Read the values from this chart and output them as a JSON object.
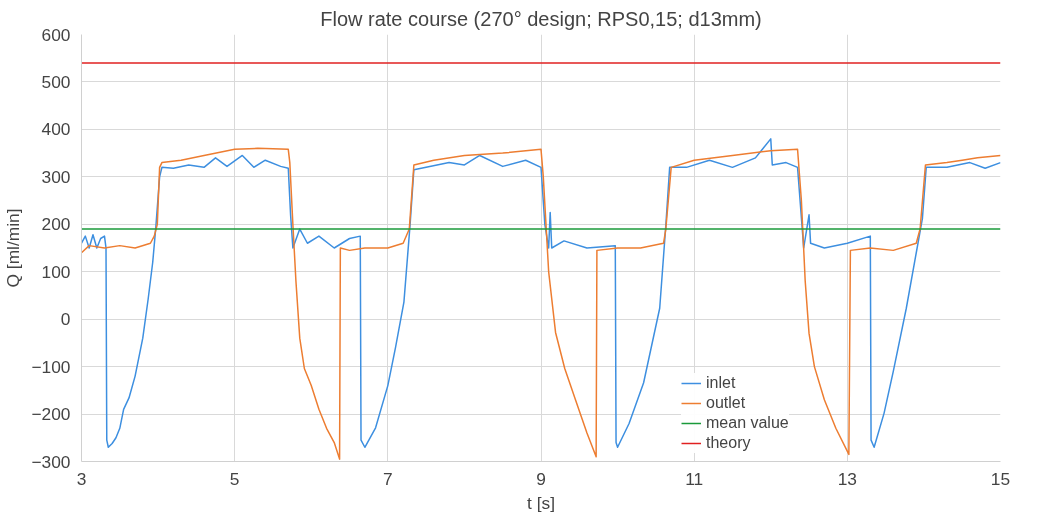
{
  "chart_data": {
    "type": "line",
    "title": "Flow rate course (270° design; RPS0,15; d13mm)",
    "xlabel": "t [s]",
    "ylabel": "Q [ml/min]",
    "xlim": [
      3,
      15
    ],
    "xticks": [
      3,
      5,
      7,
      9,
      11,
      13,
      15
    ],
    "ylim": [
      -300,
      600
    ],
    "yticks": [
      -300,
      -200,
      -100,
      0,
      100,
      200,
      300,
      400,
      500,
      600
    ],
    "grid": true,
    "legend": "bottom right",
    "line_style": "solid",
    "marker": "none",
    "series": [
      {
        "name": "inlet",
        "color": "#3d8fe0",
        "x": [
          3.0,
          3.05,
          3.1,
          3.15,
          3.2,
          3.25,
          3.3,
          3.32,
          3.33,
          3.35,
          3.4,
          3.45,
          3.5,
          3.55,
          3.62,
          3.7,
          3.8,
          3.87,
          3.93,
          3.97,
          4.02,
          4.05,
          4.2,
          4.4,
          4.6,
          4.75,
          4.9,
          5.1,
          5.25,
          5.4,
          5.6,
          5.7,
          5.73,
          5.76,
          5.85,
          5.95,
          6.1,
          6.3,
          6.5,
          6.64,
          6.65,
          6.7,
          6.84,
          7.0,
          7.1,
          7.21,
          7.29,
          7.34,
          7.5,
          7.8,
          8.0,
          8.2,
          8.5,
          8.8,
          9.0,
          9.05,
          9.1,
          9.12,
          9.14,
          9.3,
          9.6,
          9.97,
          9.98,
          10.0,
          10.15,
          10.34,
          10.55,
          10.63,
          10.68,
          10.9,
          11.2,
          11.5,
          11.8,
          12.0,
          12.02,
          12.2,
          12.35,
          12.43,
          12.5,
          12.52,
          12.7,
          13.0,
          13.3,
          13.31,
          13.35,
          13.48,
          13.6,
          13.77,
          13.9,
          13.98,
          14.03,
          14.3,
          14.6,
          14.8,
          15.0
        ],
        "values": [
          160,
          175,
          150,
          178,
          150,
          170,
          175,
          150,
          -255,
          -270,
          -262,
          -250,
          -230,
          -190,
          -166,
          -120,
          -40,
          42,
          120,
          193,
          300,
          320,
          318,
          325,
          320,
          340,
          322,
          345,
          320,
          335,
          322,
          318,
          220,
          150,
          190,
          160,
          175,
          150,
          170,
          175,
          -255,
          -270,
          -229,
          -140,
          -60,
          36,
          198,
          315,
          320,
          330,
          325,
          345,
          322,
          335,
          320,
          200,
          150,
          225,
          150,
          165,
          150,
          155,
          -260,
          -270,
          -220,
          -134,
          23,
          198,
          320,
          320,
          335,
          320,
          340,
          380,
          325,
          330,
          320,
          150,
          220,
          160,
          150,
          160,
          175,
          -255,
          -270,
          -198,
          -110,
          23,
          140,
          212,
          320,
          320,
          330,
          318,
          330
        ]
      },
      {
        "name": "outlet",
        "color": "#ed7d31",
        "x": [
          3.0,
          3.1,
          3.3,
          3.5,
          3.7,
          3.9,
          3.95,
          3.99,
          4.02,
          4.05,
          4.3,
          4.6,
          5.0,
          5.3,
          5.7,
          5.72,
          5.76,
          5.8,
          5.85,
          5.91,
          6.0,
          6.1,
          6.2,
          6.3,
          6.37,
          6.38,
          6.5,
          6.7,
          7.0,
          7.2,
          7.28,
          7.34,
          7.6,
          8.0,
          8.5,
          9.0,
          9.03,
          9.1,
          9.19,
          9.31,
          9.45,
          9.6,
          9.72,
          9.73,
          10.0,
          10.3,
          10.6,
          10.63,
          10.7,
          11.0,
          11.5,
          12.0,
          12.35,
          12.4,
          12.45,
          12.5,
          12.57,
          12.7,
          12.85,
          13.02,
          13.04,
          13.3,
          13.6,
          13.9,
          13.95,
          14.02,
          14.3,
          14.5,
          14.7,
          15.0
        ],
        "values": [
          140,
          155,
          150,
          155,
          150,
          160,
          175,
          200,
          320,
          330,
          335,
          345,
          358,
          360,
          358,
          330,
          200,
          80,
          -40,
          -104,
          -140,
          -190,
          -230,
          -260,
          -295,
          150,
          145,
          150,
          150,
          160,
          190,
          325,
          335,
          345,
          350,
          358,
          300,
          100,
          -28,
          -104,
          -170,
          -240,
          -290,
          145,
          150,
          150,
          160,
          190,
          320,
          335,
          345,
          355,
          358,
          250,
          80,
          -30,
          -100,
          -170,
          -230,
          -285,
          145,
          150,
          145,
          160,
          190,
          325,
          330,
          335,
          340,
          345
        ]
      },
      {
        "name": "mean value",
        "color": "#1a9a3a",
        "x": [
          3,
          15
        ],
        "values": [
          190,
          190
        ]
      },
      {
        "name": "theory",
        "color": "#e02020",
        "x": [
          3,
          15
        ],
        "values": [
          540,
          540
        ]
      }
    ]
  }
}
